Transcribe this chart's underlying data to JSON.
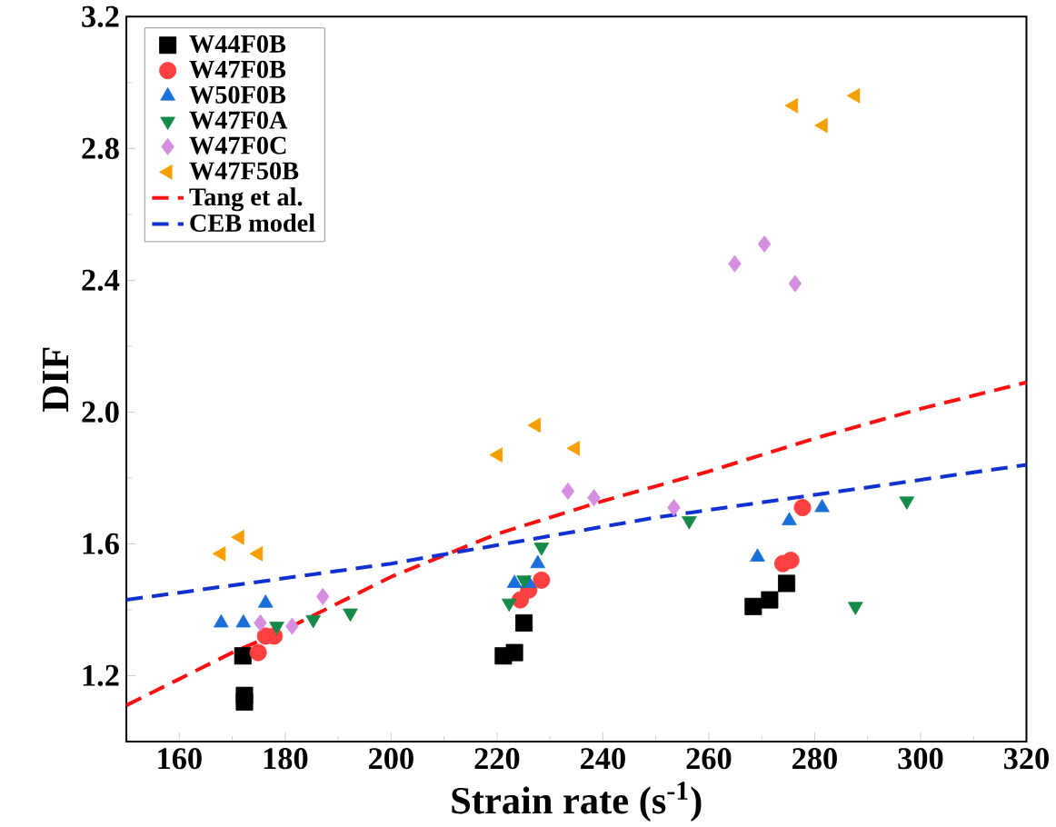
{
  "chart_data": {
    "type": "scatter",
    "xlabel": "Strain rate (s$^{-1}$)",
    "ylabel": "DIF",
    "xlim": [
      150,
      320
    ],
    "xticks": [
      160,
      180,
      200,
      220,
      240,
      260,
      280,
      300,
      320
    ],
    "ylim": [
      1.0,
      3.2
    ],
    "yticks": [
      1.2,
      1.6,
      {
        "value": 2,
        "label": "2.0"
      },
      2.4,
      2.8,
      3.2
    ],
    "legend": "top left",
    "grid": false,
    "series": [
      {
        "name": "W44F0B",
        "color": "#000000",
        "marker": "square",
        "x": [
          172.3,
          172.3,
          172,
          221.2,
          223.3,
          225.1,
          268.4,
          271.5,
          274.7
        ],
        "values": [
          1.14,
          1.12,
          1.26,
          1.26,
          1.27,
          1.36,
          1.41,
          1.43,
          1.48
        ]
      },
      {
        "name": "W47F0B",
        "color": "#ff4040",
        "marker": "circle",
        "x": [
          174.9,
          176.3,
          177.9,
          224.4,
          226,
          228.4,
          274,
          275.5,
          277.7
        ],
        "values": [
          1.27,
          1.32,
          1.32,
          1.43,
          1.46,
          1.49,
          1.54,
          1.55,
          1.71
        ]
      },
      {
        "name": "W50F0B",
        "color": "#1a6fd8",
        "marker": "triangle",
        "x": [
          167.9,
          172.1,
          176.3,
          223.3,
          226,
          227.7,
          269.2,
          275.2,
          281.4
        ],
        "values": [
          1.36,
          1.36,
          1.42,
          1.48,
          1.48,
          1.54,
          1.56,
          1.67,
          1.71
        ]
      },
      {
        "name": "W47F0A",
        "color": "#168a48",
        "marker": "triangle-down",
        "x": [
          178.4,
          185.3,
          192.3,
          222.3,
          225.1,
          228.4,
          256.3,
          287.7,
          297.4
        ],
        "values": [
          1.35,
          1.37,
          1.39,
          1.42,
          1.49,
          1.59,
          1.67,
          1.41,
          1.73
        ]
      },
      {
        "name": "W47F0C",
        "color": "#d68ee0",
        "marker": "diamond",
        "x": [
          175.3,
          181.3,
          187.1,
          233.4,
          238.3,
          253.4,
          264.9,
          270.5,
          276.3
        ],
        "values": [
          1.36,
          1.35,
          1.44,
          1.76,
          1.74,
          1.71,
          2.45,
          2.51,
          2.39
        ]
      },
      {
        "name": "W47F50B",
        "color": "#f5a000",
        "marker": "triangle-left",
        "x": [
          167.9,
          171.4,
          174.9,
          220.2,
          227.4,
          234.8,
          276,
          281.6,
          287.7
        ],
        "values": [
          1.57,
          1.62,
          1.57,
          1.87,
          1.96,
          1.89,
          2.93,
          2.87,
          2.96
        ]
      },
      {
        "name": "Tang et al.",
        "type": "line",
        "line_style": "dashed",
        "color": "#ff1010",
        "x": [
          150,
          160,
          170,
          180,
          200,
          220,
          240,
          260,
          280,
          300,
          320
        ],
        "values": [
          1.11,
          1.19,
          1.27,
          1.34,
          1.5,
          1.63,
          1.73,
          1.82,
          1.92,
          2.01,
          2.09
        ]
      },
      {
        "name": "CEB model",
        "type": "line",
        "line_style": "dashed",
        "color": "#1030d0",
        "x": [
          150,
          200,
          250,
          320
        ],
        "values": [
          1.43,
          1.54,
          1.68,
          1.84
        ]
      }
    ]
  }
}
